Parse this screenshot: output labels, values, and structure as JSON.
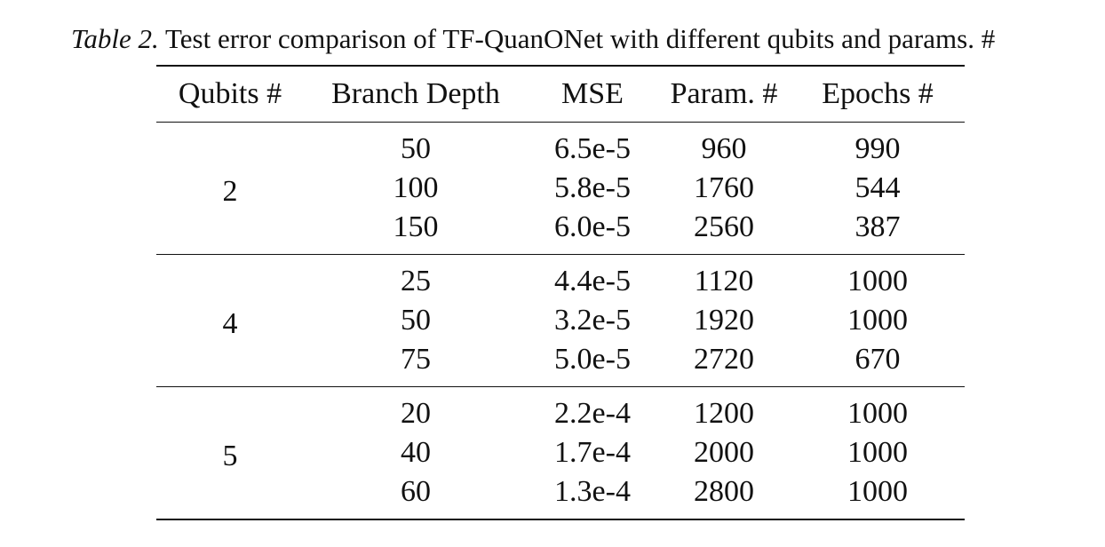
{
  "caption": {
    "label": "Table 2.",
    "text": "Test error comparison of TF-QuanONet with different qubits and params. #"
  },
  "table": {
    "headers": [
      "Qubits #",
      "Branch Depth",
      "MSE",
      "Param. #",
      "Epochs #"
    ],
    "groups": [
      {
        "qubits": "2",
        "rows": [
          {
            "depth": "50",
            "mse": "6.5e-5",
            "params": "960",
            "epochs": "990"
          },
          {
            "depth": "100",
            "mse": "5.8e-5",
            "params": "1760",
            "epochs": "544"
          },
          {
            "depth": "150",
            "mse": "6.0e-5",
            "params": "2560",
            "epochs": "387"
          }
        ]
      },
      {
        "qubits": "4",
        "rows": [
          {
            "depth": "25",
            "mse": "4.4e-5",
            "params": "1120",
            "epochs": "1000"
          },
          {
            "depth": "50",
            "mse": "3.2e-5",
            "params": "1920",
            "epochs": "1000"
          },
          {
            "depth": "75",
            "mse": "5.0e-5",
            "params": "2720",
            "epochs": "670"
          }
        ]
      },
      {
        "qubits": "5",
        "rows": [
          {
            "depth": "20",
            "mse": "2.2e-4",
            "params": "1200",
            "epochs": "1000"
          },
          {
            "depth": "40",
            "mse": "1.7e-4",
            "params": "2000",
            "epochs": "1000"
          },
          {
            "depth": "60",
            "mse": "1.3e-4",
            "params": "2800",
            "epochs": "1000"
          }
        ]
      }
    ]
  }
}
